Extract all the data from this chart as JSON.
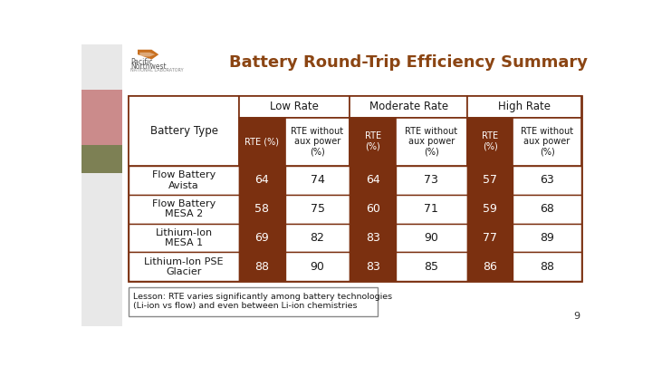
{
  "title": "Battery Round-Trip Efficiency Summary",
  "title_color": "#8B4513",
  "bg_color": "#ffffff",
  "header_dark_color": "#7B3010",
  "border_color": "#7B3010",
  "text_dark": "#1a1a1a",
  "text_white": "#ffffff",
  "rate_headers": [
    "Low Rate",
    "Moderate Rate",
    "High Rate"
  ],
  "col_sub_headers": [
    "RTE (%)",
    "RTE without\naux power\n(%)",
    "RTE\n(%)",
    "RTE without\naux power\n(%)",
    "RTE\n(%)",
    "RTE without\naux power\n(%)"
  ],
  "rows": [
    [
      "Flow Battery\nAvista",
      "64",
      "74",
      "64",
      "73",
      "57",
      "63"
    ],
    [
      "Flow Battery\nMESA 2",
      "58",
      "75",
      "60",
      "71",
      "59",
      "68"
    ],
    [
      "Lithium-Ion\nMESA 1",
      "69",
      "82",
      "83",
      "90",
      "77",
      "89"
    ],
    [
      "Lithium-Ion PSE\nGlacier",
      "88",
      "90",
      "83",
      "85",
      "86",
      "88"
    ]
  ],
  "note": "Lesson: RTE varies significantly among battery technologies\n(Li-ion vs flow) and even between Li-ion chemistries",
  "page_number": "9",
  "left_panel_color": "#c0c0c0",
  "building_color": "#cc3333"
}
